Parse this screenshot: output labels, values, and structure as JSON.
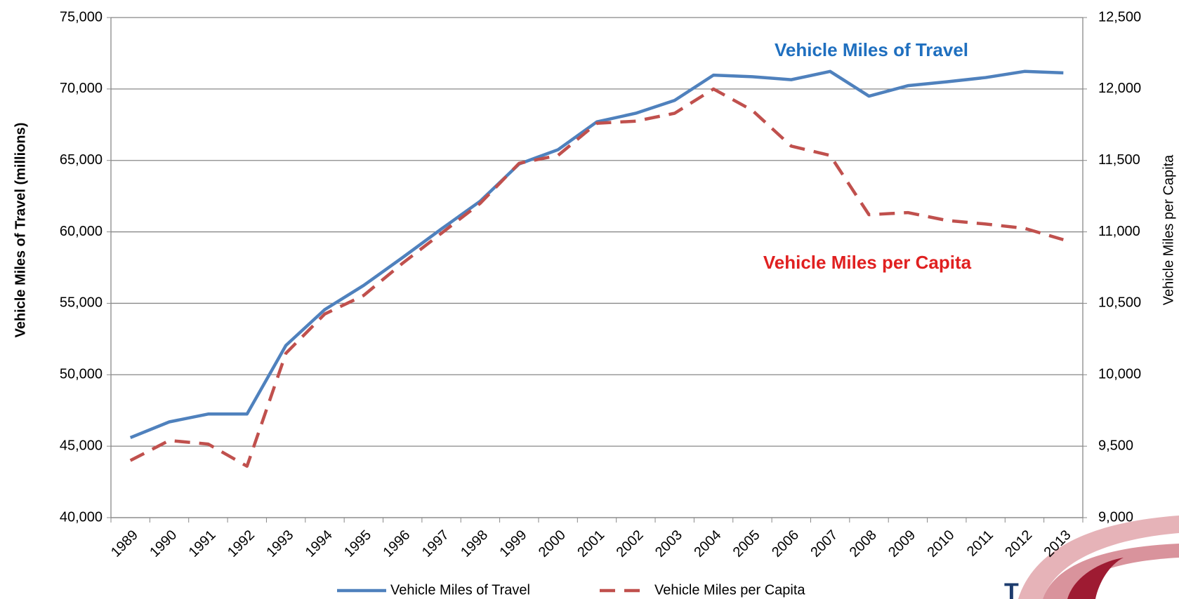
{
  "chart_data": {
    "type": "line",
    "y_label": "Vehicle Miles of Travel (millions)",
    "y2_label": "Vehicle Miles per Capita",
    "annotations": [
      "Vehicle Miles of Travel",
      "Vehicle Miles per Capita"
    ],
    "annotation_colors": [
      "#1f6fbf",
      "#e02020"
    ],
    "categories": [
      "1989",
      "1990",
      "1991",
      "1992",
      "1993",
      "1994",
      "1995",
      "1996",
      "1997",
      "1998",
      "1999",
      "2000",
      "2001",
      "2002",
      "2003",
      "2004",
      "2005",
      "2006",
      "2007",
      "2008",
      "2009",
      "2010",
      "2011",
      "2012",
      "2013"
    ],
    "series": [
      {
        "name": "Vehicle Miles of Travel",
        "color": "#4f81bd",
        "dashed": false,
        "values": [
          45600,
          46700,
          47250,
          47250,
          52050,
          54560,
          56250,
          58200,
          60200,
          62150,
          64750,
          65750,
          67700,
          68300,
          69200,
          70970,
          70860,
          70650,
          71230,
          69500,
          70230,
          70500,
          70800,
          71230,
          71130
        ]
      },
      {
        "name": "Vehicle Miles per Capita",
        "color": "#c0504d",
        "dashed": true,
        "axis": "y2",
        "values": [
          9400,
          9540,
          9515,
          9360,
          10150,
          10425,
          10555,
          10780,
          10990,
          11200,
          11480,
          11535,
          11760,
          11775,
          11830,
          12000,
          11850,
          11600,
          11535,
          11120,
          11135,
          11080,
          11055,
          11025,
          10945
        ]
      }
    ],
    "ylim": [
      40000,
      75000
    ],
    "yticks": [
      {
        "value": 40000,
        "label": "40,000"
      },
      {
        "value": 45000,
        "label": "45,000"
      },
      {
        "value": 50000,
        "label": "50,000"
      },
      {
        "value": 55000,
        "label": "55,000"
      },
      {
        "value": 60000,
        "label": "60,000"
      },
      {
        "value": 65000,
        "label": "65,000"
      },
      {
        "value": 70000,
        "label": "70,000"
      },
      {
        "value": 75000,
        "label": "75,000"
      }
    ],
    "y2lim": [
      9000,
      12500
    ],
    "y2ticks": [
      {
        "value": 9000,
        "label": "9,000"
      },
      {
        "value": 9500,
        "label": "9,500"
      },
      {
        "value": 10000,
        "label": "10,000"
      },
      {
        "value": 10500,
        "label": "10,500"
      },
      {
        "value": 11000,
        "label": "11,000"
      },
      {
        "value": 11500,
        "label": "11,500"
      },
      {
        "value": 12000,
        "label": "12,000"
      },
      {
        "value": 12500,
        "label": "12,500"
      }
    ],
    "grid": true,
    "legend": "bottom"
  }
}
